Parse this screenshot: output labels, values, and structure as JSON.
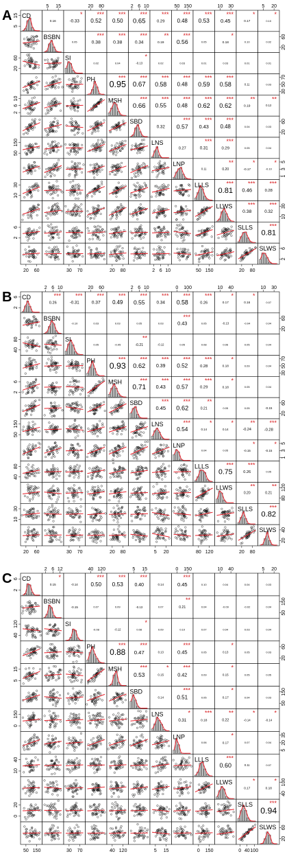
{
  "figure": {
    "variables": [
      "CD",
      "BSBN",
      "SI",
      "PH",
      "MSH",
      "SBD",
      "LNS",
      "LNP",
      "LLLS",
      "LLWS",
      "SLLS",
      "SLWS"
    ],
    "panels": [
      {
        "letter": "A",
        "top_ticks": [
          [
            "5",
            "15"
          ],
          [
            "20",
            "80"
          ],
          [
            "2",
            "6",
            "10"
          ],
          [
            "50",
            "150"
          ],
          [
            "10",
            "30"
          ],
          [
            "5",
            "20"
          ]
        ],
        "right_ticks": [
          [
            "20",
            "60"
          ],
          [
            "30",
            "50",
            "70"
          ],
          [
            "20",
            "60"
          ],
          [
            "1",
            "3",
            "5"
          ],
          [
            "10",
            "30"
          ],
          [
            "2",
            "6"
          ]
        ],
        "left_ticks": [
          [
            "5",
            "15"
          ],
          [
            "20",
            "60"
          ],
          [
            "2",
            "6",
            "10"
          ],
          [
            "50",
            "150"
          ],
          [
            "10",
            "30"
          ],
          [
            "2",
            "6"
          ]
        ],
        "bottom_ticks": [
          [
            "20",
            "60"
          ],
          [
            "30",
            "70"
          ],
          [
            "20",
            "80"
          ],
          [
            "2",
            "6",
            "10"
          ],
          [
            "50",
            "150"
          ],
          [
            "20",
            "80"
          ]
        ]
      },
      {
        "letter": "B",
        "top_ticks": [
          [
            "2",
            "6",
            "10"
          ],
          [
            "20",
            "60"
          ],
          [
            "2",
            "6",
            "10"
          ],
          [
            "0",
            "100"
          ],
          [
            "10",
            "40"
          ],
          [
            "10",
            "30"
          ]
        ],
        "right_ticks": [
          [
            "20",
            "60"
          ],
          [
            "30",
            "50",
            "70"
          ],
          [
            "20",
            "60"
          ],
          [
            "1",
            "3",
            "5"
          ],
          [
            "80",
            "120"
          ],
          [
            "20",
            "40"
          ]
        ],
        "left_ticks": [
          [
            "2",
            "6"
          ],
          [
            "40",
            "80"
          ],
          [
            "2",
            "6"
          ],
          [
            "50",
            "150"
          ],
          [
            "40",
            "80"
          ],
          [
            "10",
            "30"
          ]
        ],
        "bottom_ticks": [
          [
            "20",
            "60"
          ],
          [
            "30",
            "70"
          ],
          [
            "20",
            "80"
          ],
          [
            "5",
            "20"
          ],
          [
            "80",
            "120"
          ],
          [
            "20",
            "80"
          ]
        ]
      },
      {
        "letter": "C",
        "top_ticks": [
          [
            "2",
            "6",
            "12"
          ],
          [
            "40",
            "120"
          ],
          [
            "5",
            "15"
          ],
          [
            "0",
            "150"
          ],
          [
            "10",
            "40"
          ],
          [
            "5",
            "20"
          ]
        ],
        "right_ticks": [
          [
            "50",
            "150"
          ],
          [
            "20",
            "60"
          ],
          [
            "50",
            "150"
          ],
          [
            "5",
            "20",
            "35"
          ],
          [
            "40",
            "100"
          ],
          [
            "20",
            "60"
          ]
        ],
        "left_ticks": [
          [
            "2",
            "6"
          ],
          [
            "40",
            "120"
          ],
          [
            "5",
            "15"
          ],
          [
            "0",
            "150"
          ],
          [
            "10",
            "40"
          ],
          [
            "0",
            "20"
          ]
        ],
        "bottom_ticks": [
          [
            "50",
            "150"
          ],
          [
            "30",
            "70"
          ],
          [
            "40",
            "120"
          ],
          [
            "5",
            "15"
          ],
          [
            "0",
            "150"
          ],
          [
            "0",
            "40",
            "100"
          ]
        ]
      }
    ]
  },
  "chart_data": [
    {
      "type": "scatter-matrix",
      "label": "A",
      "variables": [
        "CD",
        "BSBN",
        "SI",
        "PH",
        "MSH",
        "SBD",
        "LNS",
        "LNP",
        "LLLS",
        "LLWS",
        "SLLS",
        "SLWS"
      ],
      "correlations": [
        [
          null,
          0.16,
          -0.33,
          0.52,
          0.5,
          0.65,
          0.29,
          0.48,
          0.53,
          0.45,
          0.17,
          0.1
        ],
        [
          null,
          null,
          0.05,
          0.38,
          0.38,
          0.34,
          0.19,
          0.56,
          0.05,
          0.18,
          0.1,
          0.02
        ],
        [
          null,
          null,
          null,
          0.02,
          0.04,
          -0.13,
          0.02,
          0.03,
          0.01,
          0.03,
          0.01,
          0.01
        ],
        [
          null,
          null,
          null,
          null,
          0.95,
          0.67,
          0.58,
          0.48,
          0.59,
          0.58,
          0.11,
          0.03
        ],
        [
          null,
          null,
          null,
          null,
          null,
          0.66,
          0.55,
          0.48,
          0.62,
          0.62,
          0.19,
          0.12
        ],
        [
          null,
          null,
          null,
          null,
          null,
          null,
          0.32,
          0.57,
          0.43,
          0.48,
          0.04,
          0.03
        ],
        [
          null,
          null,
          null,
          null,
          null,
          null,
          null,
          0.27,
          0.31,
          0.29,
          0.05,
          0.04
        ],
        [
          null,
          null,
          null,
          null,
          null,
          null,
          null,
          null,
          0.11,
          0.2,
          -0.17,
          -0.1
        ],
        [
          null,
          null,
          null,
          null,
          null,
          null,
          null,
          null,
          null,
          0.81,
          0.46,
          0.28
        ],
        [
          null,
          null,
          null,
          null,
          null,
          null,
          null,
          null,
          null,
          null,
          0.38,
          0.32
        ],
        [
          null,
          null,
          null,
          null,
          null,
          null,
          null,
          null,
          null,
          null,
          null,
          0.81
        ]
      ],
      "stars": [
        [
          "",
          "*",
          "***",
          "***",
          "***",
          "***",
          "***",
          "***",
          "***",
          "*",
          "*"
        ],
        [
          "",
          "***",
          "***",
          "***",
          "**",
          "***",
          "",
          "*",
          "",
          ""
        ],
        [
          "",
          "",
          "*",
          "",
          "",
          "",
          "",
          "",
          " ",
          ""
        ],
        [
          "***",
          "***",
          "***",
          "***",
          "***",
          "***",
          "",
          ""
        ],
        [
          "***",
          "***",
          "***",
          "***",
          "***",
          "**",
          "**"
        ],
        [
          "",
          "***",
          "***",
          "***",
          "",
          ""
        ],
        [
          "",
          "***",
          "***",
          "",
          ""
        ],
        [
          "",
          "**",
          "*",
          "*"
        ],
        [
          "***",
          "***",
          "***"
        ],
        [
          "***",
          "***"
        ],
        [
          "***"
        ]
      ]
    },
    {
      "type": "scatter-matrix",
      "label": "B",
      "variables": [
        "CD",
        "BSBN",
        "SI",
        "PH",
        "MSH",
        "SBD",
        "LNS",
        "LNP",
        "LLLS",
        "LLWS",
        "SLLS",
        "SLWS"
      ],
      "correlations": [
        [
          null,
          0.26,
          -0.31,
          0.37,
          0.49,
          0.55,
          0.34,
          0.58,
          0.26,
          0.17,
          0.16,
          0.07
        ],
        [
          null,
          null,
          -0.1,
          0.03,
          0.03,
          0.05,
          0.03,
          0.43,
          0.05,
          -0.13,
          -0.04,
          0.04
        ],
        [
          null,
          null,
          null,
          0.05,
          -0.05,
          -0.21,
          -0.12,
          0.05,
          0.08,
          0.06,
          0.05,
          0.04
        ],
        [
          null,
          null,
          null,
          null,
          0.93,
          0.62,
          0.39,
          0.52,
          0.28,
          0.18,
          0.09,
          0.04
        ],
        [
          null,
          null,
          null,
          null,
          null,
          0.71,
          0.43,
          0.57,
          0.29,
          0.18,
          0.05,
          0.04
        ],
        [
          null,
          null,
          null,
          null,
          null,
          null,
          0.45,
          0.62,
          0.21,
          0.05,
          0.05,
          -0.15
        ],
        [
          null,
          null,
          null,
          null,
          null,
          null,
          null,
          0.54,
          0.14,
          0.14,
          -0.24,
          -0.28
        ],
        [
          null,
          null,
          null,
          null,
          null,
          null,
          null,
          null,
          0.04,
          0.05,
          -0.15,
          -0.15
        ],
        [
          null,
          null,
          null,
          null,
          null,
          null,
          null,
          null,
          null,
          0.75,
          0.26,
          0.05
        ],
        [
          null,
          null,
          null,
          null,
          null,
          null,
          null,
          null,
          null,
          null,
          0.2,
          0.21
        ],
        [
          null,
          null,
          null,
          null,
          null,
          null,
          null,
          null,
          null,
          null,
          null,
          0.82
        ]
      ],
      "stars": [
        [
          "***",
          "***",
          "***",
          "***",
          "***",
          "***",
          "***",
          "***",
          "*",
          "*",
          ""
        ],
        [
          "",
          "",
          "",
          "",
          "",
          "***",
          "",
          "",
          "",
          " "
        ],
        [
          "",
          "",
          "**",
          "",
          "",
          "",
          "",
          "",
          " "
        ],
        [
          "***",
          "***",
          "***",
          "***",
          "***",
          "*",
          "",
          ""
        ],
        [
          "***",
          "***",
          "***",
          "***",
          "*",
          "",
          ""
        ],
        [
          "***",
          "***",
          "**",
          "",
          "",
          ""
        ],
        [
          "***",
          "*",
          "*",
          "**",
          "***"
        ],
        [
          "",
          "",
          "*",
          "*"
        ],
        [
          "***",
          "***",
          ""
        ],
        [
          "**",
          "**"
        ],
        [
          "***"
        ]
      ]
    },
    {
      "type": "scatter-matrix",
      "label": "C",
      "variables": [
        "CD",
        "BSBN",
        "SI",
        "PH",
        "MSH",
        "SBD",
        "LNS",
        "LNP",
        "LLLS",
        "LLWS",
        "SLLS",
        "SLWS"
      ],
      "correlations": [
        [
          null,
          0.15,
          -0.14,
          0.5,
          0.53,
          0.4,
          0.14,
          0.45,
          0.1,
          0.04,
          0.04,
          0.03
        ],
        [
          null,
          null,
          -0.15,
          0.07,
          0.09,
          -0.13,
          0.07,
          0.21,
          0.04,
          -0.09,
          -0.02,
          0.04
        ],
        [
          null,
          null,
          null,
          -0.08,
          -0.12,
          0.08,
          0.09,
          0.1,
          0.07,
          0.04,
          0.03,
          0.04
        ],
        [
          null,
          null,
          null,
          null,
          0.88,
          0.47,
          0.13,
          0.45,
          0.05,
          0.13,
          0.05,
          0.03
        ],
        [
          null,
          null,
          null,
          null,
          null,
          0.53,
          0.15,
          0.42,
          0.09,
          0.15,
          0.05,
          0.05
        ],
        [
          null,
          null,
          null,
          null,
          null,
          null,
          0.14,
          0.51,
          0.05,
          0.17,
          0.04,
          0.03
        ],
        [
          null,
          null,
          null,
          null,
          null,
          null,
          null,
          0.31,
          0.18,
          0.22,
          -0.14,
          -0.14
        ],
        [
          null,
          null,
          null,
          null,
          null,
          null,
          null,
          null,
          0.06,
          0.17,
          0.07,
          0.04
        ],
        [
          null,
          null,
          null,
          null,
          null,
          null,
          null,
          null,
          null,
          0.6,
          0.11,
          0.07
        ],
        [
          null,
          null,
          null,
          null,
          null,
          null,
          null,
          null,
          null,
          null,
          0.17,
          0.18
        ],
        [
          null,
          null,
          null,
          null,
          null,
          null,
          null,
          null,
          null,
          null,
          null,
          0.94
        ]
      ],
      "stars": [
        [
          "*",
          "",
          "***",
          "***",
          "***",
          "",
          "***",
          "",
          "",
          "",
          ""
        ],
        [
          "",
          "",
          "",
          "",
          "",
          "**",
          "",
          "",
          "",
          " "
        ],
        [
          "",
          "",
          "*",
          "",
          "",
          "",
          "",
          "",
          " "
        ],
        [
          "***",
          "***",
          "",
          "***",
          "",
          "*",
          "",
          ""
        ],
        [
          "***",
          "*",
          "***",
          "",
          "*",
          "",
          ""
        ],
        [
          "",
          "***",
          "",
          "*",
          "",
          ""
        ],
        [
          "*",
          "***",
          "**",
          "*",
          "*"
        ],
        [
          "",
          "*",
          "",
          ""
        ],
        [
          "***",
          "",
          ""
        ],
        [
          "*",
          "*"
        ],
        [
          "***"
        ]
      ]
    }
  ]
}
